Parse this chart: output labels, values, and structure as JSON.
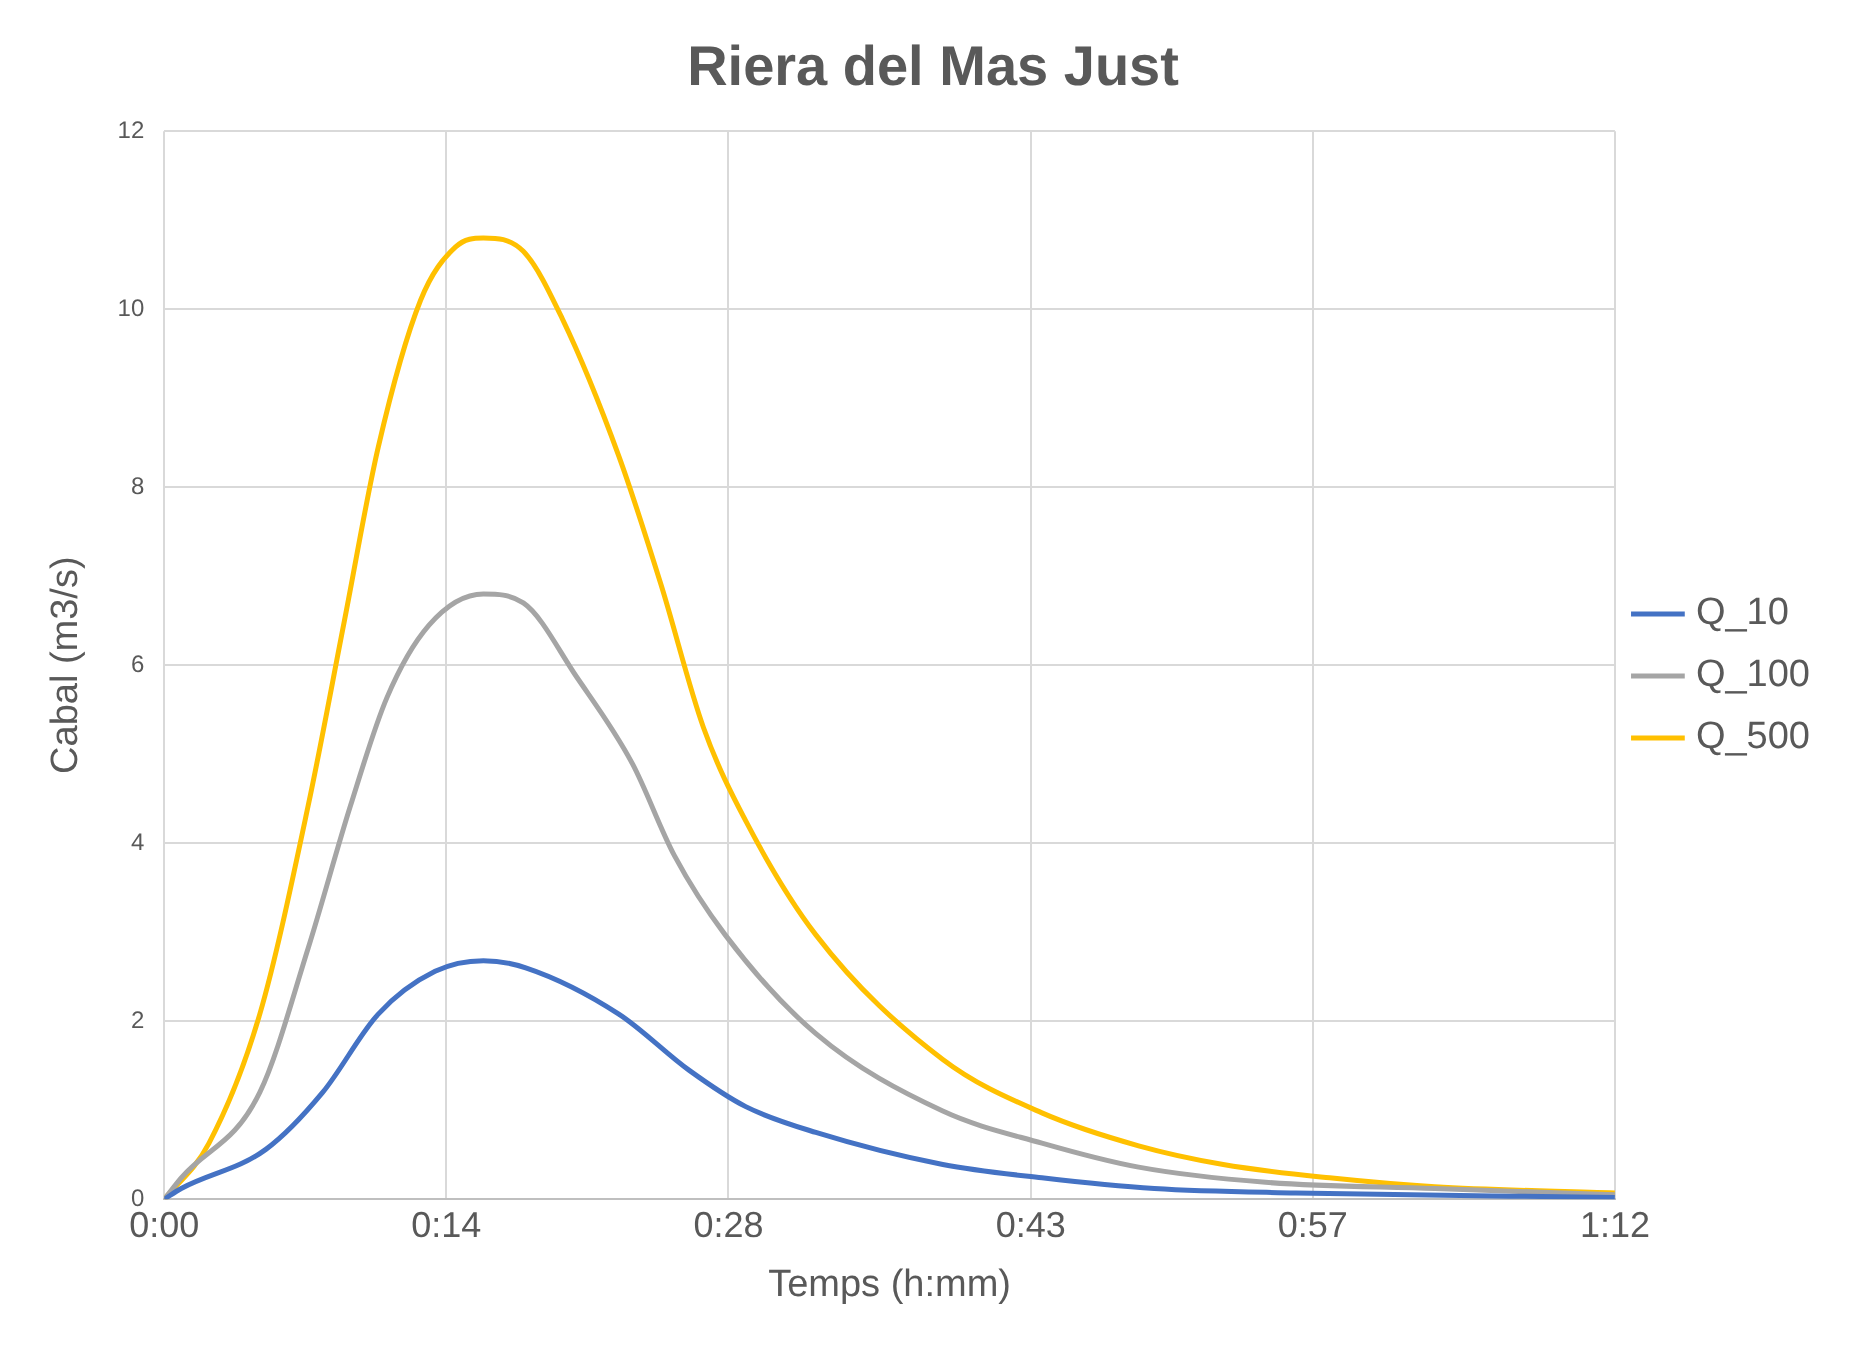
{
  "chart_data": {
    "type": "line",
    "title": "Riera del Mas Just",
    "xlabel": "Temps (h:mm)",
    "ylabel": "Cabal (m3/s)",
    "xlim": [
      0,
      1.2
    ],
    "xticks": [
      {
        "value": 0,
        "label": "0:00"
      },
      {
        "value": 0.2333,
        "label": "0:14"
      },
      {
        "value": 0.4667,
        "label": "0:28"
      },
      {
        "value": 0.7167,
        "label": "0:43"
      },
      {
        "value": 0.95,
        "label": "0:57"
      },
      {
        "value": 1.2,
        "label": "1:12"
      }
    ],
    "ylim": [
      0,
      12
    ],
    "yticks": [
      0,
      2,
      4,
      6,
      8,
      10,
      12
    ],
    "grid": true,
    "legend": "right",
    "marker": "none",
    "line_style": "solid",
    "series": [
      {
        "name": "Q_10",
        "color": "#4472c4",
        "x": [
          0,
          0.014,
          0.084,
          0.131,
          0.177,
          0.224,
          0.264,
          0.299,
          0.376,
          0.434,
          0.481,
          0.539,
          0.644,
          0.726,
          0.819,
          0.936,
          1.2
        ],
        "values": [
          0,
          0.12,
          0.56,
          1.2,
          2.08,
          2.56,
          2.68,
          2.6,
          2.08,
          1.45,
          1.04,
          0.75,
          0.39,
          0.24,
          0.12,
          0.07,
          0.02
        ]
      },
      {
        "name": "Q_100",
        "color": "#a5a5a5",
        "x": [
          0,
          0.014,
          0.079,
          0.119,
          0.154,
          0.184,
          0.219,
          0.264,
          0.297,
          0.341,
          0.387,
          0.422,
          0.464,
          0.539,
          0.644,
          0.726,
          0.806,
          0.911,
          1.051,
          1.2
        ],
        "values": [
          0,
          0.24,
          1.2,
          2.82,
          4.42,
          5.63,
          6.45,
          6.8,
          6.7,
          5.87,
          4.9,
          3.86,
          2.97,
          1.86,
          0.99,
          0.63,
          0.36,
          0.19,
          0.12,
          0.05
        ]
      },
      {
        "name": "Q_500",
        "color": "#ffc000",
        "x": [
          0,
          0.037,
          0.079,
          0.119,
          0.149,
          0.177,
          0.212,
          0.241,
          0.264,
          0.297,
          0.329,
          0.376,
          0.411,
          0.446,
          0.481,
          0.539,
          0.644,
          0.726,
          0.806,
          0.876,
          0.964,
          1.051,
          1.2
        ],
        "values": [
          0,
          0.63,
          2.08,
          4.42,
          6.5,
          8.45,
          10.1,
          10.7,
          10.8,
          10.65,
          9.9,
          8.35,
          6.9,
          5.3,
          4.25,
          2.97,
          1.57,
          0.97,
          0.6,
          0.39,
          0.24,
          0.14,
          0.07
        ]
      }
    ]
  }
}
